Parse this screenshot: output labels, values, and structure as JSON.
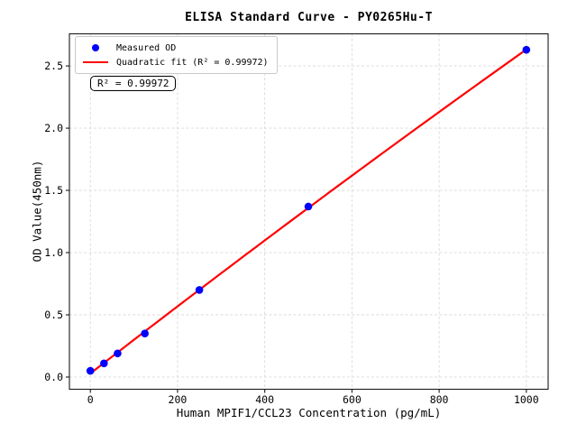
{
  "figure": {
    "background": "#ffffff"
  },
  "legend": {
    "position": "upper left",
    "items": [
      {
        "label": "Measured OD",
        "marker": "dot",
        "color": "#0000ff"
      },
      {
        "label": "Quadratic fit (R² = 0.99972)",
        "marker": "line",
        "color": "#ff0000"
      }
    ]
  },
  "annotation": {
    "text": "R² = 0.99972"
  },
  "chart_data": {
    "type": "scatter",
    "title": "ELISA Standard Curve - PY0265Hu-T",
    "xlabel": "Human MPIF1/CCL23 Concentration (pg/mL)",
    "ylabel": "OD Value(450nm)",
    "x": [
      0,
      31.25,
      62.5,
      125,
      250,
      500,
      1000
    ],
    "series": [
      {
        "name": "Measured OD",
        "type": "scatter",
        "color": "#0000ff",
        "values": [
          0.05,
          0.11,
          0.19,
          0.35,
          0.7,
          1.37,
          2.63
        ]
      },
      {
        "name": "Quadratic fit (R² = 0.99972)",
        "type": "line",
        "color": "#ff0000",
        "fit": "quadratic",
        "r_squared": 0.99972
      }
    ],
    "xlim": [
      -48,
      1050
    ],
    "ylim": [
      -0.098,
      2.758
    ],
    "xticks": [
      0,
      200,
      400,
      600,
      800,
      1000
    ],
    "yticks": [
      0.0,
      0.5,
      1.0,
      1.5,
      2.0,
      2.5
    ],
    "grid": true,
    "grid_color": "#d9d9d9",
    "spine_color": "#1a1a1a",
    "legend_position": "upper left"
  }
}
